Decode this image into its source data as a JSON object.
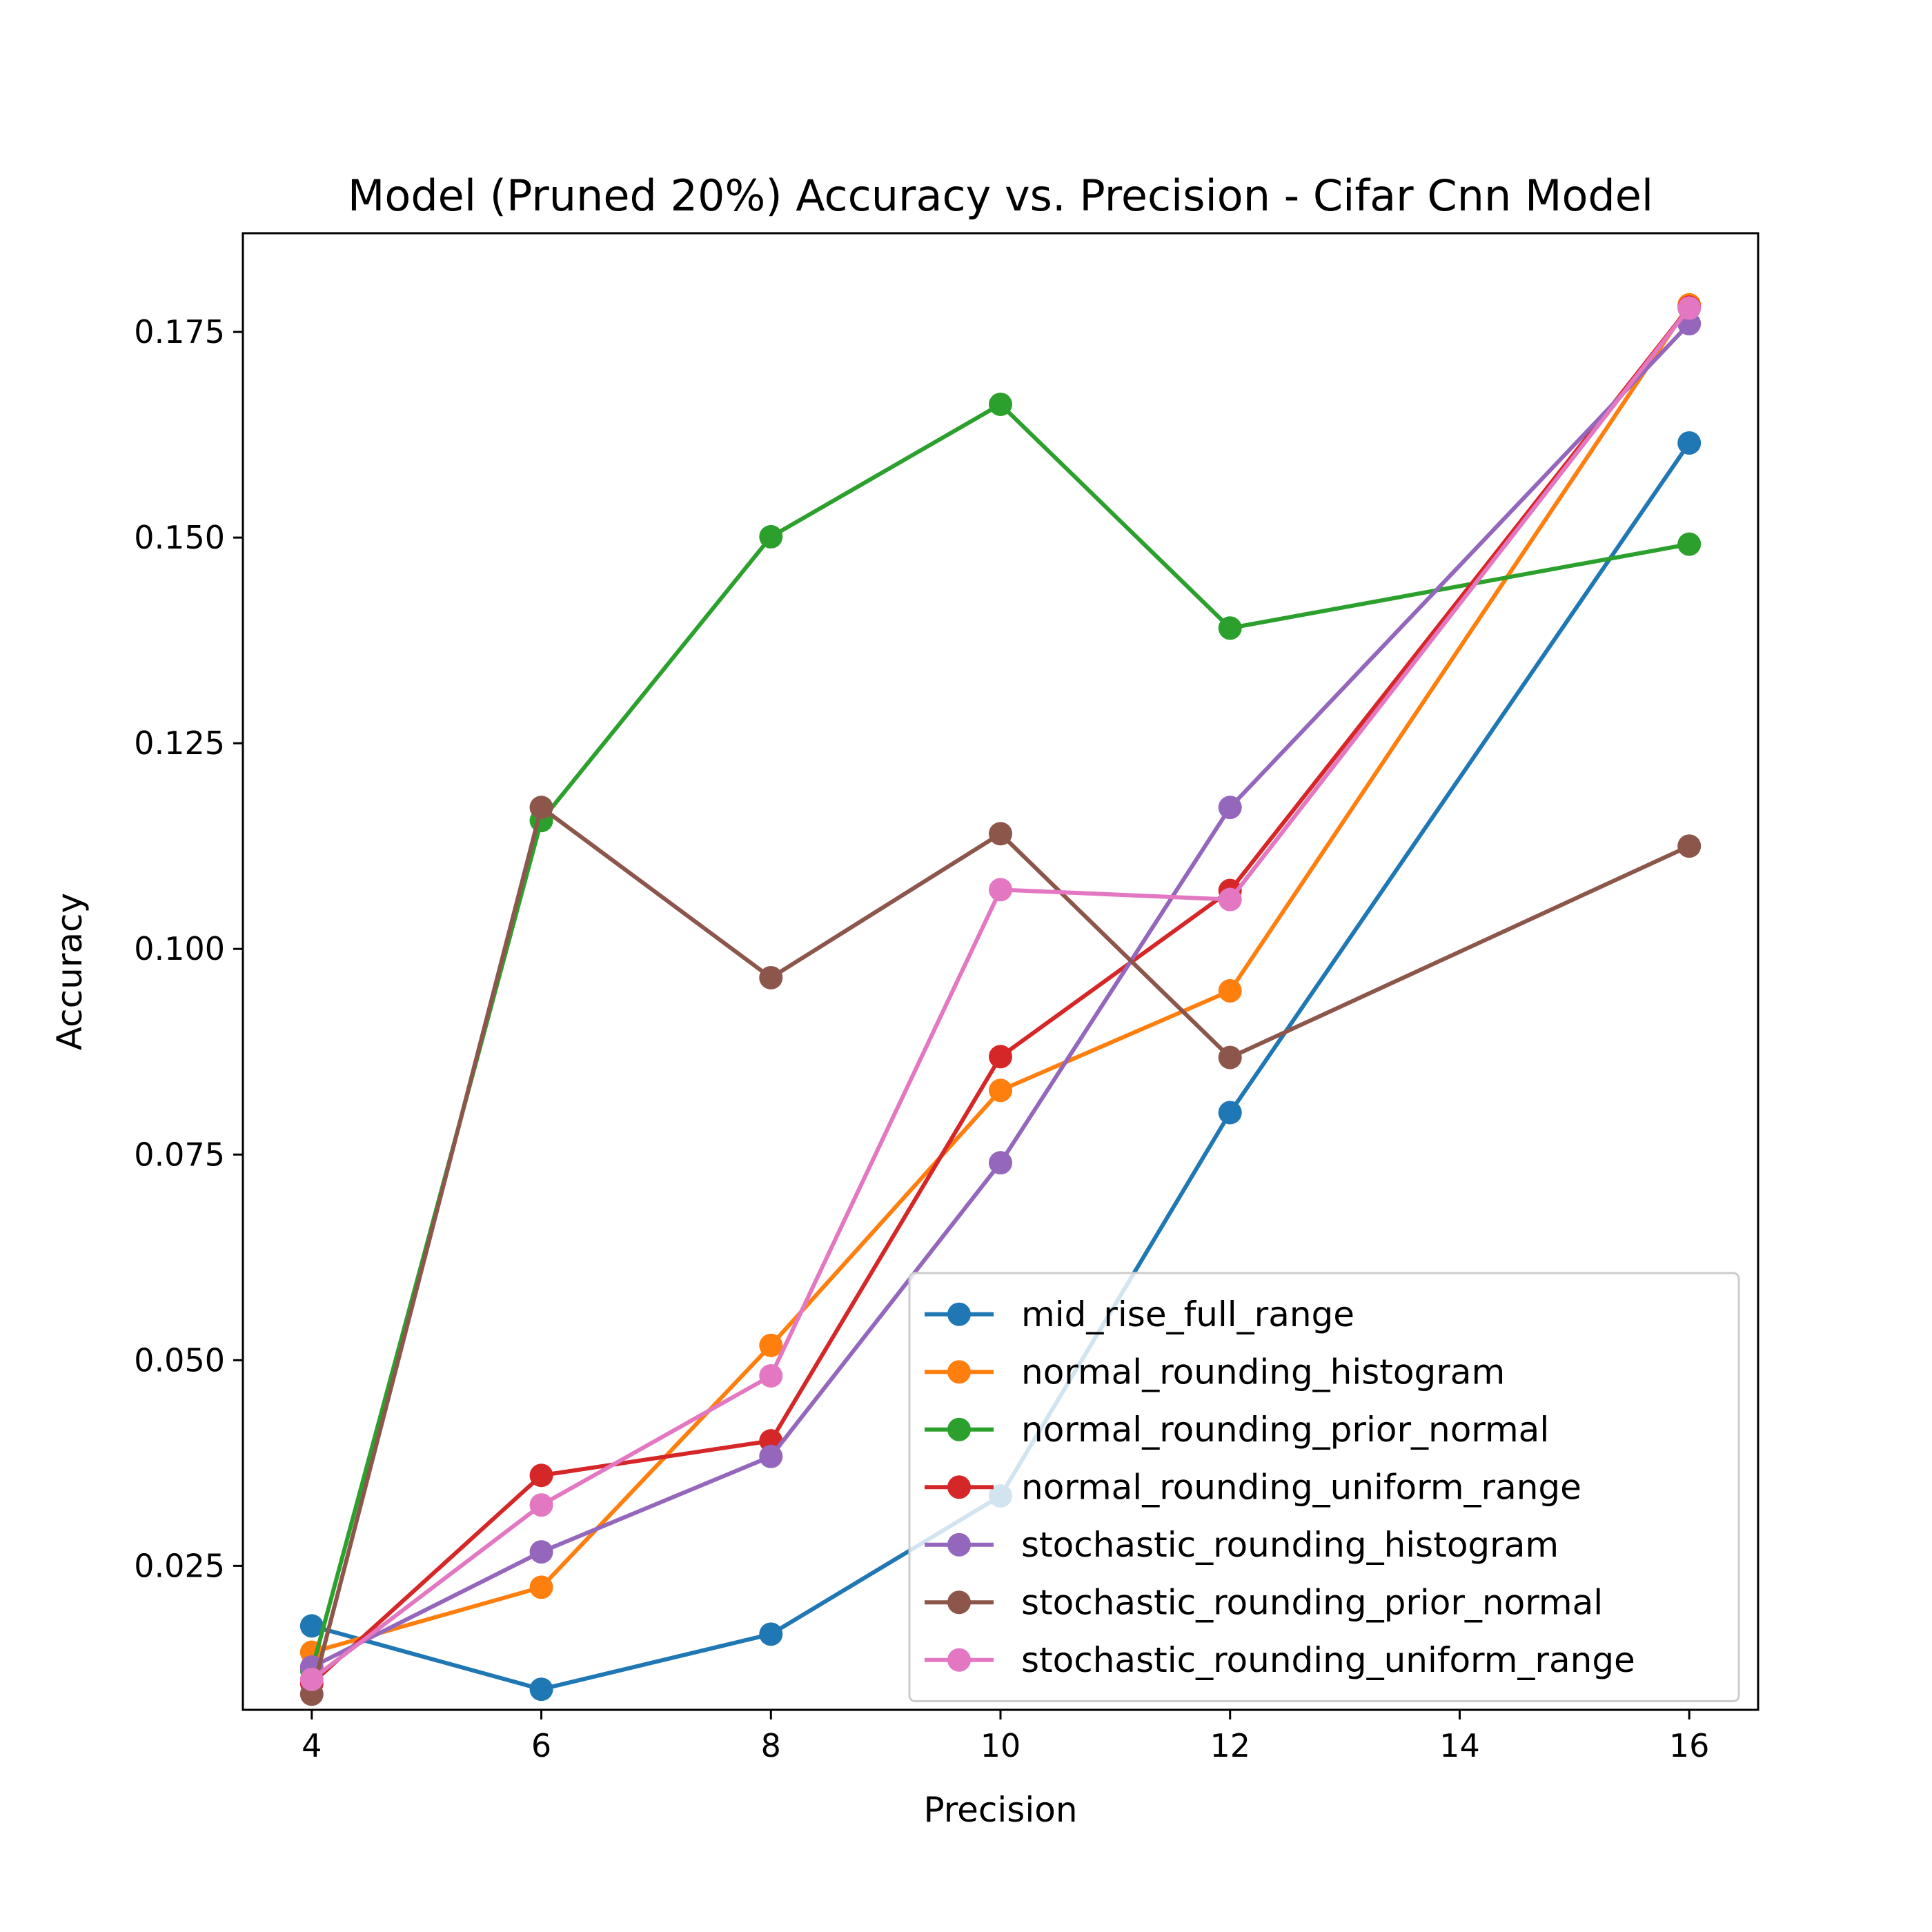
{
  "chart_data": {
    "type": "line",
    "title": "Model (Pruned 20%) Accuracy vs. Precision - Cifar Cnn Model",
    "xlabel": "Precision",
    "ylabel": "Accuracy",
    "xlim": [
      3.4,
      16.6
    ],
    "ylim": [
      0.0075,
      0.187
    ],
    "xticks": [
      4,
      6,
      8,
      10,
      12,
      14,
      16
    ],
    "xtick_labels": [
      "4",
      "6",
      "8",
      "10",
      "12",
      "14",
      "16"
    ],
    "yticks": [
      0.025,
      0.05,
      0.075,
      0.1,
      0.125,
      0.15,
      0.175
    ],
    "ytick_labels": [
      "0.025",
      "0.050",
      "0.075",
      "0.100",
      "0.125",
      "0.150",
      "0.175"
    ],
    "grid": false,
    "legend_position": "lower-right",
    "x": [
      4,
      6,
      8,
      10,
      12,
      16
    ],
    "series": [
      {
        "name": "mid_rise_full_range",
        "color": "#1f77b4",
        "values": [
          0.0177,
          0.01,
          0.0167,
          0.0335,
          0.0801,
          0.1615
        ]
      },
      {
        "name": "normal_rounding_histogram",
        "color": "#ff7f0e",
        "values": [
          0.0145,
          0.0224,
          0.0518,
          0.0828,
          0.0949,
          0.1783
        ]
      },
      {
        "name": "normal_rounding_prior_normal",
        "color": "#2ca02c",
        "values": [
          0.0123,
          0.1156,
          0.1501,
          0.1662,
          0.139,
          0.1492
        ]
      },
      {
        "name": "normal_rounding_uniform_range",
        "color": "#d62728",
        "values": [
          0.0107,
          0.036,
          0.0402,
          0.0869,
          0.1071,
          0.178
        ]
      },
      {
        "name": "stochastic_rounding_histogram",
        "color": "#9467bd",
        "values": [
          0.0127,
          0.0267,
          0.0383,
          0.074,
          0.1172,
          0.176
        ]
      },
      {
        "name": "stochastic_rounding_prior_normal",
        "color": "#8c564b",
        "values": [
          0.0094,
          0.1172,
          0.0965,
          0.114,
          0.0868,
          0.1125
        ]
      },
      {
        "name": "stochastic_rounding_uniform_range",
        "color": "#e377c2",
        "values": [
          0.0112,
          0.0324,
          0.0481,
          0.1072,
          0.106,
          0.1779
        ]
      }
    ]
  }
}
